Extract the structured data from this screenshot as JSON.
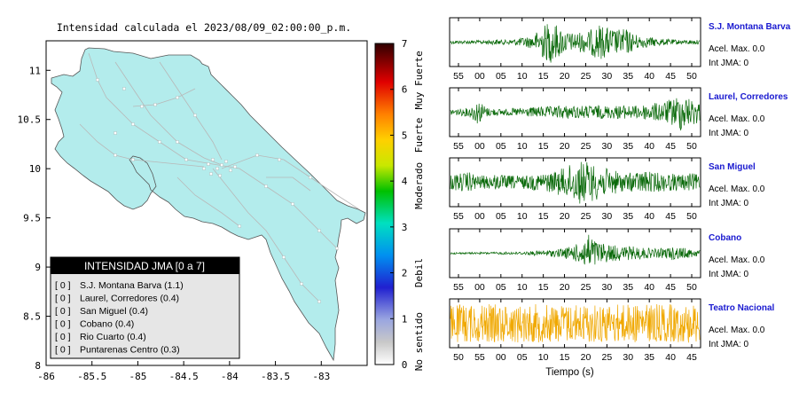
{
  "map": {
    "title": "Intensidad calculada el 2023/08/09_02:00:00_p.m.",
    "x_ticks": [
      "-86",
      "-85.5",
      "-85",
      "-84.5",
      "-84",
      "-83.5",
      "-83"
    ],
    "y_ticks": [
      "11",
      "10.5",
      "10",
      "9.5",
      "9",
      "8.5",
      "8"
    ],
    "xlim": [
      -86,
      -82.5
    ],
    "ylim": [
      8,
      11.3
    ],
    "land_color": "#b3ecec",
    "frame_color": "#000000"
  },
  "legend_box": {
    "header": "INTENSIDAD JMA [0 a 7]",
    "items": [
      {
        "badge": "[ 0 ]",
        "label": "S.J. Montana Barva (1.1)"
      },
      {
        "badge": "[ 0 ]",
        "label": "Laurel, Corredores (0.4)"
      },
      {
        "badge": "[ 0 ]",
        "label": "San Miguel (0.4)"
      },
      {
        "badge": "[ 0 ]",
        "label": "Cobano (0.4)"
      },
      {
        "badge": "[ 0 ]",
        "label": "Rio Cuarto (0.4)"
      },
      {
        "badge": "[ 0 ]",
        "label": "Puntarenas Centro (0.3)"
      }
    ]
  },
  "colorbar": {
    "ticks": [
      "0",
      "1",
      "2",
      "3",
      "4",
      "5",
      "6",
      "7"
    ],
    "category_labels": [
      "No sentido",
      "Debil",
      "Moderado",
      "Fuerte",
      "Muy Fuerte"
    ],
    "range": [
      0,
      7
    ]
  },
  "chart_data": [
    {
      "type": "line",
      "station": "S.J. Montana Barva",
      "accel_label": "Acel. Max. 0.0",
      "jma_label": "Int JMA: 0",
      "x_ticks": [
        "55",
        "00",
        "05",
        "10",
        "15",
        "20",
        "25",
        "30",
        "35",
        "40",
        "45",
        "50"
      ],
      "color": "#0b6a0b",
      "envelope": [
        0.08,
        0.08,
        0.09,
        0.08,
        0.1,
        0.12,
        0.1,
        0.15,
        0.22,
        0.3,
        0.75,
        0.95,
        0.6,
        0.4,
        0.45,
        0.5,
        0.8,
        0.65,
        0.55,
        0.6,
        0.35,
        0.25,
        0.2,
        0.15,
        0.12,
        0.1,
        0.1,
        0.09
      ]
    },
    {
      "type": "line",
      "station": "Laurel, Corredores",
      "accel_label": "Acel. Max. 0.0",
      "jma_label": "Int JMA: 0",
      "x_ticks": [
        "55",
        "00",
        "05",
        "10",
        "15",
        "20",
        "25",
        "30",
        "35",
        "40",
        "45",
        "50"
      ],
      "color": "#0b6a0b",
      "envelope": [
        0.15,
        0.15,
        0.2,
        0.55,
        0.2,
        0.15,
        0.15,
        0.18,
        0.2,
        0.22,
        0.25,
        0.25,
        0.3,
        0.3,
        0.28,
        0.3,
        0.3,
        0.28,
        0.3,
        0.3,
        0.28,
        0.35,
        0.4,
        0.45,
        0.6,
        0.85,
        0.6,
        0.5
      ]
    },
    {
      "type": "line",
      "station": "San Miguel",
      "accel_label": "Acel. Max. 0.0",
      "jma_label": "Int JMA: 0",
      "x_ticks": [
        "55",
        "00",
        "05",
        "10",
        "15",
        "20",
        "25",
        "30",
        "35",
        "40",
        "45",
        "50"
      ],
      "color": "#0b6a0b",
      "envelope": [
        0.35,
        0.4,
        0.45,
        0.3,
        0.3,
        0.35,
        0.3,
        0.3,
        0.3,
        0.35,
        0.4,
        0.45,
        0.6,
        0.8,
        0.95,
        0.9,
        0.75,
        0.6,
        0.5,
        0.4,
        0.45,
        0.5,
        0.45,
        0.4,
        0.4,
        0.35,
        0.4,
        0.35
      ]
    },
    {
      "type": "line",
      "station": "Cobano",
      "accel_label": "Acel. Max. 0.0",
      "jma_label": "Int JMA: 0",
      "x_ticks": [
        "55",
        "00",
        "05",
        "10",
        "15",
        "20",
        "25",
        "30",
        "35",
        "40",
        "45",
        "50"
      ],
      "color": "#0b6a0b",
      "envelope": [
        0.04,
        0.04,
        0.04,
        0.04,
        0.05,
        0.05,
        0.06,
        0.06,
        0.07,
        0.1,
        0.12,
        0.15,
        0.2,
        0.3,
        0.45,
        0.85,
        0.5,
        0.4,
        0.35,
        0.3,
        0.3,
        0.25,
        0.2,
        0.22,
        0.3,
        0.25,
        0.2,
        0.15
      ]
    },
    {
      "type": "line",
      "station": "Teatro Nacional",
      "accel_label": "Acel. Max. 0.0",
      "jma_label": "Int JMA: 0",
      "x_ticks": [
        "50",
        "55",
        "00",
        "05",
        "10",
        "15",
        "20",
        "25",
        "30",
        "35",
        "40",
        "45"
      ],
      "xlabel": "Tiempo (s)",
      "color": "#f0a800",
      "envelope": [
        0.85,
        0.85,
        0.85,
        0.85,
        0.85,
        0.85,
        0.85,
        0.85,
        0.85,
        0.85,
        0.85,
        0.85,
        0.85,
        0.85,
        0.85,
        0.85,
        0.85,
        0.85,
        0.85,
        0.85,
        0.85,
        0.85,
        0.85,
        0.85,
        0.85,
        0.85,
        0.85,
        0.85
      ]
    }
  ]
}
